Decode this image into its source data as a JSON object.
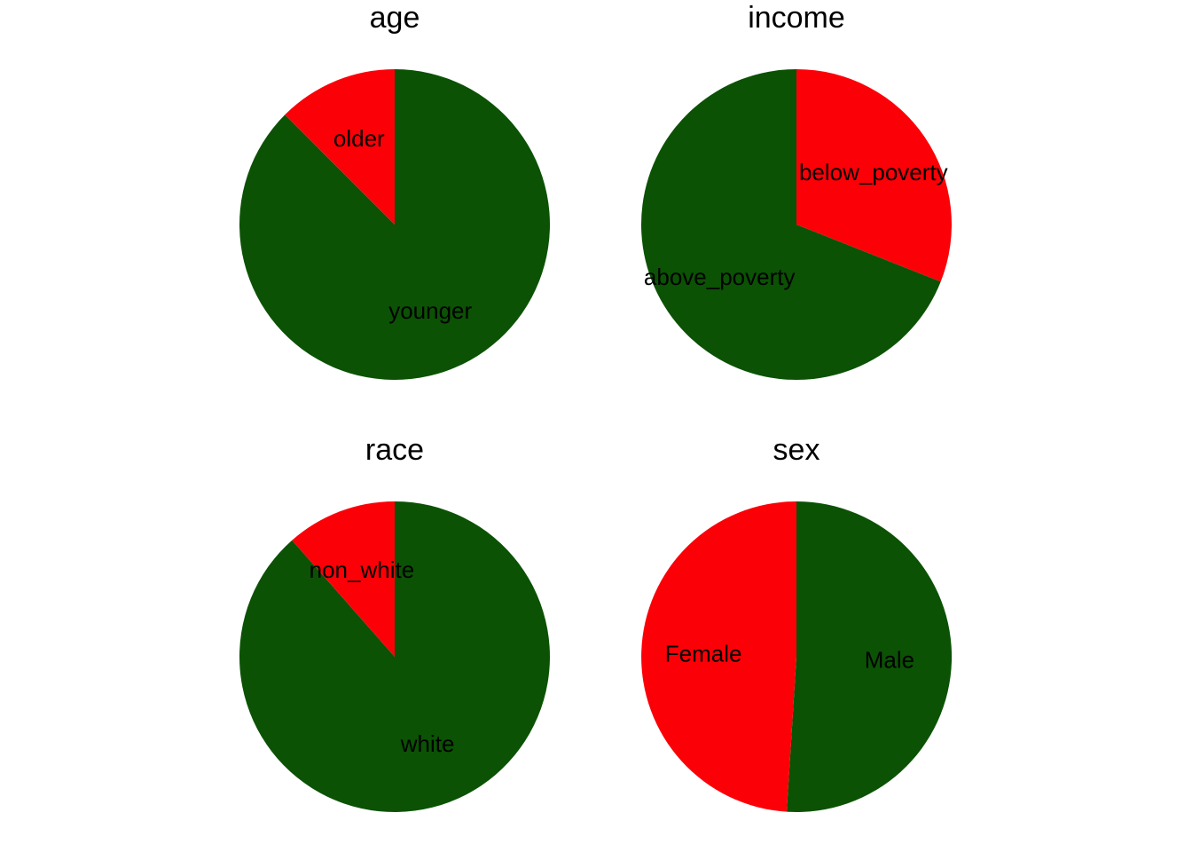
{
  "colors": {
    "green": "#0b5204",
    "red": "#fc0007"
  },
  "chart_data": [
    {
      "type": "pie",
      "title": "age",
      "start": "12 o'clock",
      "direction": "counterclockwise",
      "slices": [
        {
          "label": "older",
          "value": 12.5,
          "color": "#fc0007"
        },
        {
          "label": "younger",
          "value": 87.5,
          "color": "#0b5204"
        }
      ]
    },
    {
      "type": "pie",
      "title": "income",
      "start": "12 o'clock",
      "direction": "counterclockwise",
      "slices": [
        {
          "label": "above_poverty",
          "value": 69,
          "color": "#0b5204"
        },
        {
          "label": "below_poverty",
          "value": 31,
          "color": "#fc0007"
        }
      ]
    },
    {
      "type": "pie",
      "title": "race",
      "start": "12 o'clock",
      "direction": "counterclockwise",
      "slices": [
        {
          "label": "non_white",
          "value": 11.5,
          "color": "#fc0007"
        },
        {
          "label": "white",
          "value": 88.5,
          "color": "#0b5204"
        }
      ]
    },
    {
      "type": "pie",
      "title": "sex",
      "start": "12 o'clock",
      "direction": "counterclockwise",
      "slices": [
        {
          "label": "Female",
          "value": 49,
          "color": "#fc0007"
        },
        {
          "label": "Male",
          "value": 51,
          "color": "#0b5204"
        }
      ]
    }
  ]
}
